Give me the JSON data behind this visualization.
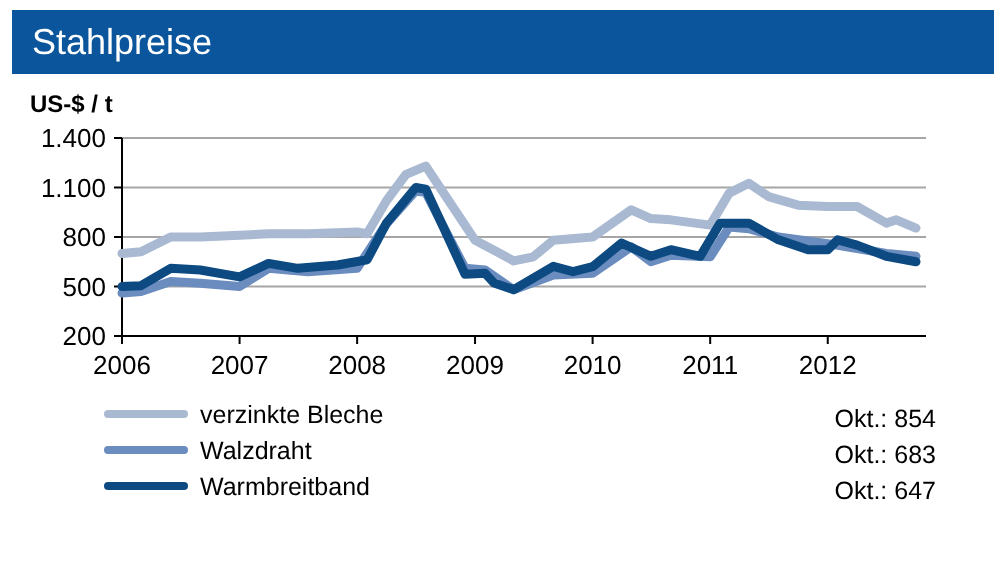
{
  "chart_data": {
    "type": "line",
    "title": "Stahlpreise",
    "ylabel": "US-$ / t",
    "xlim": [
      "2006-01",
      "2012-11"
    ],
    "xticks": [
      "2006",
      "2007",
      "2008",
      "2009",
      "2010",
      "2011",
      "2012"
    ],
    "ylim": [
      200,
      1400
    ],
    "yticks": [
      200,
      500,
      800,
      {
        "value": 1100,
        "label": "1.100"
      },
      {
        "value": 1400,
        "label": "1.400"
      }
    ],
    "grid": "y",
    "legend": "bottom",
    "line_style": "solid",
    "marker": "none",
    "annotations": [
      "Okt.: 854",
      "Okt.: 683",
      "Okt.: 647"
    ],
    "series": [
      {
        "name": "verzinkte Bleche",
        "color": "#a9b9d1",
        "x": [
          "2006-01",
          "2006-03",
          "2006-06",
          "2006-09",
          "2007-01",
          "2007-04",
          "2007-08",
          "2008-01",
          "2008-02",
          "2008-04",
          "2008-06",
          "2008-08",
          "2008-10",
          "2009-01",
          "2009-03",
          "2009-05",
          "2009-07",
          "2009-09",
          "2010-01",
          "2010-05",
          "2010-07",
          "2010-09",
          "2011-01",
          "2011-03",
          "2011-05",
          "2011-07",
          "2011-10",
          "2012-01",
          "2012-04",
          "2012-07",
          "2012-08",
          "2012-10"
        ],
        "values": [
          700,
          710,
          800,
          800,
          810,
          820,
          820,
          830,
          820,
          1020,
          1180,
          1230,
          1050,
          780,
          720,
          655,
          680,
          780,
          800,
          965,
          912,
          904,
          872,
          1066,
          1126,
          1045,
          993,
          985,
          985,
          884,
          904,
          854
        ]
      },
      {
        "name": "Walzdraht",
        "color": "#6a8cbf",
        "x": [
          "2006-01",
          "2006-03",
          "2006-06",
          "2006-09",
          "2007-01",
          "2007-04",
          "2007-08",
          "2008-01",
          "2008-04",
          "2008-07",
          "2008-08",
          "2008-12",
          "2009-02",
          "2009-05",
          "2009-09",
          "2010-01",
          "2010-05",
          "2010-07",
          "2010-09",
          "2011-01",
          "2011-03",
          "2011-05",
          "2011-08",
          "2012-01",
          "2012-04",
          "2012-07",
          "2012-10"
        ],
        "values": [
          460,
          470,
          530,
          520,
          500,
          610,
          590,
          610,
          880,
          1080,
          1070,
          610,
          600,
          480,
          570,
          580,
          740,
          650,
          690,
          680,
          860,
          850,
          800,
          760,
          730,
          700,
          683
        ]
      },
      {
        "name": "Warmbreitband",
        "color": "#0e4a82",
        "x": [
          "2006-01",
          "2006-03",
          "2006-06",
          "2006-09",
          "2007-01",
          "2007-04",
          "2007-07",
          "2007-11",
          "2008-02",
          "2008-04",
          "2008-07",
          "2008-08",
          "2008-12",
          "2009-02",
          "2009-03",
          "2009-05",
          "2009-09",
          "2009-11",
          "2010-01",
          "2010-04",
          "2010-07",
          "2010-09",
          "2010-12",
          "2011-02",
          "2011-05",
          "2011-08",
          "2011-11",
          "2012-01",
          "2012-02",
          "2012-04",
          "2012-07",
          "2012-10"
        ],
        "values": [
          500,
          505,
          610,
          600,
          558,
          640,
          610,
          630,
          662,
          884,
          1100,
          1090,
          574,
          580,
          521,
          481,
          622,
          590,
          620,
          763,
          683,
          723,
          683,
          884,
          884,
          783,
          723,
          723,
          783,
          751,
          683,
          650
        ]
      }
    ]
  }
}
